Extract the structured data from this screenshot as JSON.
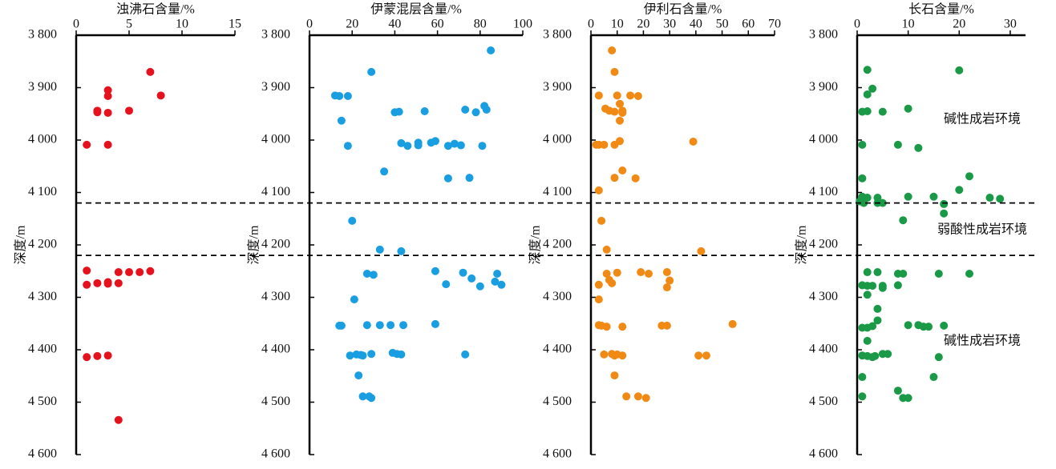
{
  "chart_data": [
    {
      "type": "scatter",
      "title": "浊沸石含量/%",
      "ylabel": "深度/m",
      "color": "#e5121d",
      "x": [
        7,
        8,
        3,
        3,
        2,
        2,
        3,
        5,
        1,
        3,
        1,
        1,
        2,
        3,
        3,
        4,
        4,
        5,
        6,
        7,
        1,
        2,
        3,
        4
      ],
      "y": [
        3870,
        3915,
        3905,
        3916,
        3944,
        3947,
        3948,
        3944,
        4009,
        4009,
        4249,
        4276,
        4273,
        4271,
        4274,
        4273,
        4252,
        4252,
        4252,
        4250,
        4414,
        4412,
        4411,
        4534
      ],
      "xlim": [
        0,
        15
      ],
      "xticks": [
        0,
        5,
        10,
        15
      ],
      "ylim": [
        3800,
        4600
      ],
      "y_inverted": true,
      "yticks": [
        {
          "value": 3800,
          "label": "3 800"
        },
        {
          "value": 3900,
          "label": "3 900"
        },
        {
          "value": 4000,
          "label": "4 000"
        },
        {
          "value": 4100,
          "label": "4 100"
        },
        {
          "value": 4200,
          "label": "4 200"
        },
        {
          "value": 4300,
          "label": "4 300"
        },
        {
          "value": 4400,
          "label": "4 400"
        },
        {
          "value": 4500,
          "label": "4 500"
        },
        {
          "value": 4600,
          "label": "4 600"
        }
      ]
    },
    {
      "type": "scatter",
      "title": "伊蒙混层含量/%",
      "ylabel": "深度/m",
      "color": "#1a9ee2",
      "x": [
        85,
        29,
        12,
        14,
        18,
        15,
        18,
        40,
        42,
        54,
        73,
        78,
        82,
        83,
        43,
        46,
        51,
        51,
        57,
        59,
        65,
        68,
        71,
        81,
        35,
        65,
        75,
        20,
        33,
        43,
        27,
        30,
        59,
        72,
        76,
        64,
        80,
        88,
        87,
        90,
        21,
        14,
        15,
        27,
        33,
        38,
        44,
        59,
        19,
        22,
        25,
        29,
        24,
        39,
        41,
        43,
        73,
        23,
        25,
        28,
        29
      ],
      "y": [
        3829,
        3870,
        3915,
        3916,
        3916,
        3963,
        4011,
        3947,
        3946,
        3945,
        3942,
        3947,
        3935,
        3942,
        4006,
        4011,
        4010,
        4005,
        4005,
        4002,
        4011,
        4007,
        4010,
        4011,
        4060,
        4073,
        4072,
        4154,
        4209,
        4212,
        4255,
        4257,
        4250,
        4253,
        4264,
        4275,
        4279,
        4255,
        4270,
        4276,
        4304,
        4354,
        4354,
        4353,
        4353,
        4353,
        4353,
        4351,
        4411,
        4409,
        4411,
        4408,
        4410,
        4406,
        4408,
        4409,
        4409,
        4449,
        4489,
        4489,
        4492
      ],
      "xlim": [
        0,
        100
      ],
      "xticks": [
        0,
        20,
        40,
        60,
        80,
        100
      ],
      "ylim": [
        3800,
        4600
      ],
      "y_inverted": true,
      "yticks": [
        {
          "value": 3800,
          "label": "3 800"
        },
        {
          "value": 3900,
          "label": "3 900"
        },
        {
          "value": 4000,
          "label": "4 000"
        },
        {
          "value": 4100,
          "label": "4 100"
        },
        {
          "value": 4200,
          "label": "4 200"
        },
        {
          "value": 4300,
          "label": "4 300"
        },
        {
          "value": 4400,
          "label": "4 400"
        },
        {
          "value": 4500,
          "label": "4 500"
        },
        {
          "value": 4600,
          "label": "4 600"
        }
      ]
    },
    {
      "type": "scatter",
      "title": "伊利石含量/%",
      "ylabel": "深度/m",
      "color": "#f08a14",
      "x": [
        8,
        9,
        3,
        10,
        15,
        18,
        11,
        5.5,
        7,
        9,
        12,
        12,
        11,
        2,
        3,
        5,
        9,
        11,
        39,
        12,
        9,
        17,
        3,
        4,
        6,
        42,
        6,
        10,
        7,
        8,
        19,
        22,
        29,
        30,
        29,
        3,
        3,
        3,
        4,
        6,
        12,
        27,
        29,
        54,
        5,
        8,
        9,
        10,
        12,
        41,
        44,
        9,
        13.5,
        18,
        21
      ],
      "y": [
        3829,
        3870,
        3915,
        3915,
        3915,
        3916,
        3931,
        3940,
        3944,
        3946,
        3944,
        3948,
        3963,
        4009,
        4009,
        4009,
        4009,
        4002,
        4003,
        4058,
        4072,
        4073,
        4096,
        4154,
        4209,
        4212,
        4255,
        4253,
        4267,
        4273,
        4252,
        4255,
        4252,
        4268,
        4281,
        4276,
        4304,
        4353,
        4354,
        4356,
        4356,
        4354,
        4354,
        4351,
        4409,
        4408,
        4411,
        4409,
        4411,
        4411,
        4411,
        4449,
        4489,
        4489,
        4492
      ],
      "xlim": [
        0,
        70
      ],
      "xticks": [
        0,
        10,
        20,
        30,
        40,
        50,
        60,
        70
      ],
      "ylim": [
        3800,
        4600
      ],
      "y_inverted": true,
      "yticks": [
        {
          "value": 3800,
          "label": "3 800"
        },
        {
          "value": 3900,
          "label": "3 900"
        },
        {
          "value": 4000,
          "label": "4 000"
        },
        {
          "value": 4100,
          "label": "4 100"
        },
        {
          "value": 4200,
          "label": "4 200"
        },
        {
          "value": 4300,
          "label": "4 300"
        },
        {
          "value": 4400,
          "label": "4 400"
        },
        {
          "value": 4500,
          "label": "4 500"
        },
        {
          "value": 4600,
          "label": "4 600"
        }
      ]
    },
    {
      "type": "scatter",
      "title": "长石含量/%",
      "ylabel": "深度/m",
      "color": "#1a9a46",
      "x": [
        2,
        20,
        3,
        2,
        1,
        2,
        5,
        10,
        1,
        8,
        12,
        1,
        22,
        20,
        1,
        2,
        0.5,
        1.3,
        4,
        4,
        5,
        10,
        15,
        17,
        17,
        26,
        28,
        9,
        2,
        4,
        8,
        9,
        16,
        22,
        1,
        2,
        3,
        5,
        5,
        8,
        2,
        4,
        4,
        1,
        2,
        3,
        10,
        12,
        13,
        14,
        17,
        2,
        1,
        2,
        3,
        3.5,
        5,
        6,
        16,
        1,
        15,
        8,
        1,
        9,
        10
      ],
      "y": [
        3866,
        3867,
        3902,
        3913,
        3946,
        3945,
        3946,
        3940,
        4009,
        4009,
        4015,
        4073,
        4069,
        4095,
        4108,
        4110,
        4117,
        4120,
        4110,
        4120,
        4120,
        4108,
        4108,
        4122,
        4140,
        4110,
        4112,
        4153,
        4252,
        4252,
        4255,
        4255,
        4255,
        4255,
        4277,
        4278,
        4278,
        4278,
        4282,
        4277,
        4295,
        4322,
        4344,
        4358,
        4358,
        4355,
        4353,
        4353,
        4356,
        4356,
        4354,
        4383,
        4411,
        4412,
        4414,
        4412,
        4408,
        4408,
        4414,
        4452,
        4452,
        4478,
        4489,
        4492,
        4492
      ],
      "xlim": [
        0,
        33
      ],
      "xticks": [
        0,
        10,
        20,
        30
      ],
      "ylim": [
        3800,
        4600
      ],
      "y_inverted": true,
      "yticks": [
        {
          "value": 3800,
          "label": "3 800"
        },
        {
          "value": 3900,
          "label": "3 900"
        },
        {
          "value": 4000,
          "label": "4 000"
        },
        {
          "value": 4100,
          "label": "4 100"
        },
        {
          "value": 4200,
          "label": "4 200"
        },
        {
          "value": 4300,
          "label": "4 300"
        },
        {
          "value": 4400,
          "label": "4 400"
        },
        {
          "value": 4500,
          "label": "4 500"
        },
        {
          "value": 4600,
          "label": "4 600"
        }
      ]
    }
  ],
  "boundaries": [
    4120,
    4220
  ],
  "annotations": [
    "碱性成岩环境",
    "弱酸性成岩环境",
    "碱性成岩环境"
  ]
}
